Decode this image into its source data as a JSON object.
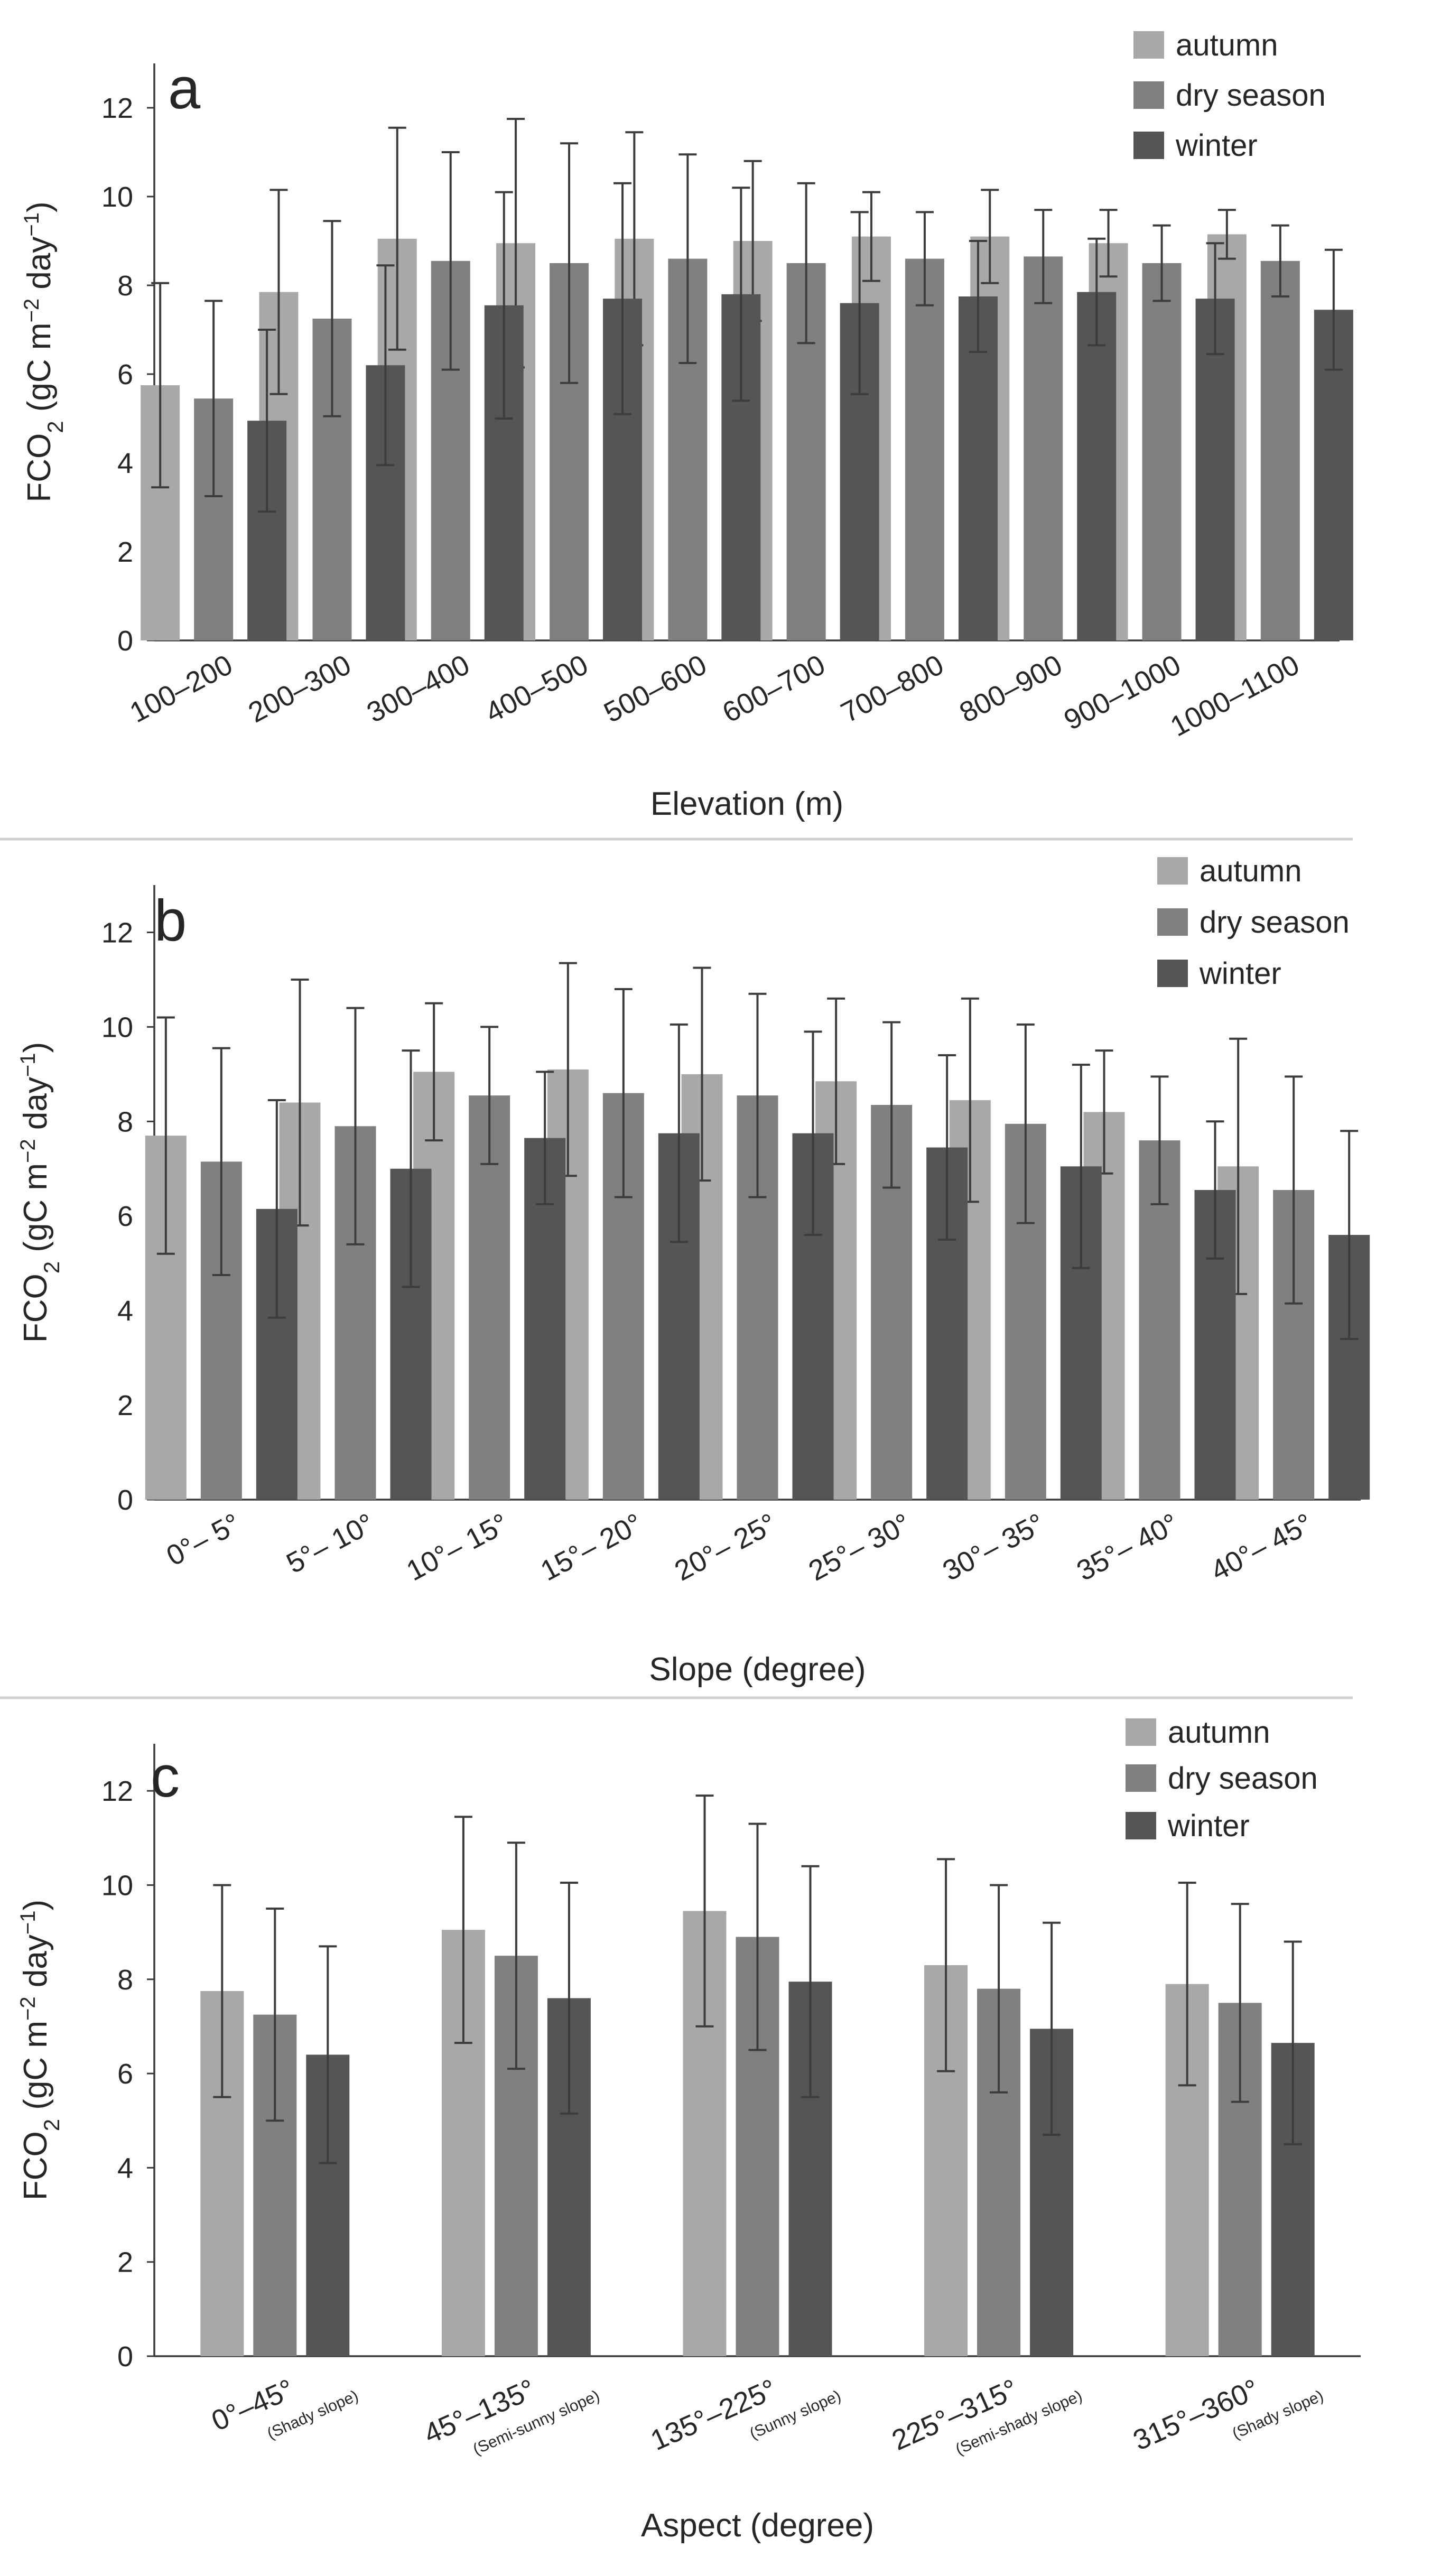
{
  "legend": [
    "autumn",
    "dry season",
    "winter"
  ],
  "colors": {
    "autumn": "#a8a8a8",
    "dry season": "#808080",
    "winter": "#555555"
  },
  "chart_data": [
    {
      "panel": "a",
      "type": "bar",
      "ylabel": "FCO2 (gC m-2 day-1)",
      "xlabel": "Elevation (m)",
      "ylim": [
        0,
        13
      ],
      "yticks": [
        0,
        2,
        4,
        6,
        8,
        10,
        12
      ],
      "legend_position": "top-right",
      "categories": [
        "100–200",
        "200–300",
        "300–400",
        "400–500",
        "500–600",
        "600–700",
        "700–800",
        "800–900",
        "900–1000",
        "1000–1100"
      ],
      "series": [
        {
          "name": "autumn",
          "values": [
            5.75,
            7.85,
            9.05,
            8.95,
            9.05,
            9.0,
            9.1,
            9.1,
            8.95,
            9.15
          ],
          "errors": [
            2.3,
            2.3,
            2.5,
            2.8,
            2.4,
            1.8,
            1.0,
            1.05,
            0.75,
            0.55
          ]
        },
        {
          "name": "dry season",
          "values": [
            5.45,
            7.25,
            8.55,
            8.5,
            8.6,
            8.5,
            8.6,
            8.65,
            8.5,
            8.55
          ],
          "errors": [
            2.2,
            2.2,
            2.45,
            2.7,
            2.35,
            1.8,
            1.05,
            1.05,
            0.85,
            0.8
          ]
        },
        {
          "name": "winter",
          "values": [
            4.95,
            6.2,
            7.55,
            7.7,
            7.8,
            7.6,
            7.75,
            7.85,
            7.7,
            7.45
          ],
          "errors": [
            2.05,
            2.25,
            2.55,
            2.6,
            2.4,
            2.05,
            1.25,
            1.2,
            1.25,
            1.35
          ]
        }
      ]
    },
    {
      "panel": "b",
      "type": "bar",
      "ylabel": "FCO2 (gC m-2 day-1)",
      "xlabel": "Slope (degree)",
      "ylim": [
        0,
        13
      ],
      "yticks": [
        0,
        2,
        4,
        6,
        8,
        10,
        12
      ],
      "legend_position": "top-right",
      "categories": [
        "0°– 5°",
        "5°– 10°",
        "10°– 15°",
        "15°– 20°",
        "20°– 25°",
        "25°– 30°",
        "30°– 35°",
        "35°– 40°",
        "40°– 45°"
      ],
      "series": [
        {
          "name": "autumn",
          "values": [
            7.7,
            8.4,
            9.05,
            9.1,
            9.0,
            8.85,
            8.45,
            8.2,
            7.05
          ],
          "errors": [
            2.5,
            2.6,
            1.45,
            2.25,
            2.25,
            1.75,
            2.15,
            1.3,
            2.7
          ]
        },
        {
          "name": "dry season",
          "values": [
            7.15,
            7.9,
            8.55,
            8.6,
            8.55,
            8.35,
            7.95,
            7.6,
            6.55
          ],
          "errors": [
            2.4,
            2.5,
            1.45,
            2.2,
            2.15,
            1.75,
            2.1,
            1.35,
            2.4
          ]
        },
        {
          "name": "winter",
          "values": [
            6.15,
            7.0,
            7.65,
            7.75,
            7.75,
            7.45,
            7.05,
            6.55,
            5.6
          ],
          "errors": [
            2.3,
            2.5,
            1.4,
            2.3,
            2.15,
            1.95,
            2.15,
            1.45,
            2.2
          ]
        }
      ]
    },
    {
      "panel": "c",
      "type": "bar",
      "ylabel": "FCO2 (gC m-2 day-1)",
      "xlabel": "Aspect (degree)",
      "ylim": [
        0,
        13
      ],
      "yticks": [
        0,
        2,
        4,
        6,
        8,
        10,
        12
      ],
      "legend_position": "top-right",
      "categories": [
        "0°–45°",
        "45°–135°",
        "135°–225°",
        "225°–315°",
        "315°–360°"
      ],
      "category_notes": [
        "(Shady slope)",
        "(Semi-sunny slope)",
        "(Sunny slope)",
        "(Semi-shady slope)",
        "(Shady slope)"
      ],
      "series": [
        {
          "name": "autumn",
          "values": [
            7.75,
            9.05,
            9.45,
            8.3,
            7.9
          ],
          "errors": [
            2.25,
            2.4,
            2.45,
            2.25,
            2.15
          ]
        },
        {
          "name": "dry season",
          "values": [
            7.25,
            8.5,
            8.9,
            7.8,
            7.5
          ],
          "errors": [
            2.25,
            2.4,
            2.4,
            2.2,
            2.1
          ]
        },
        {
          "name": "winter",
          "values": [
            6.4,
            7.6,
            7.95,
            6.95,
            6.65
          ],
          "errors": [
            2.3,
            2.45,
            2.45,
            2.25,
            2.15
          ]
        }
      ]
    }
  ]
}
